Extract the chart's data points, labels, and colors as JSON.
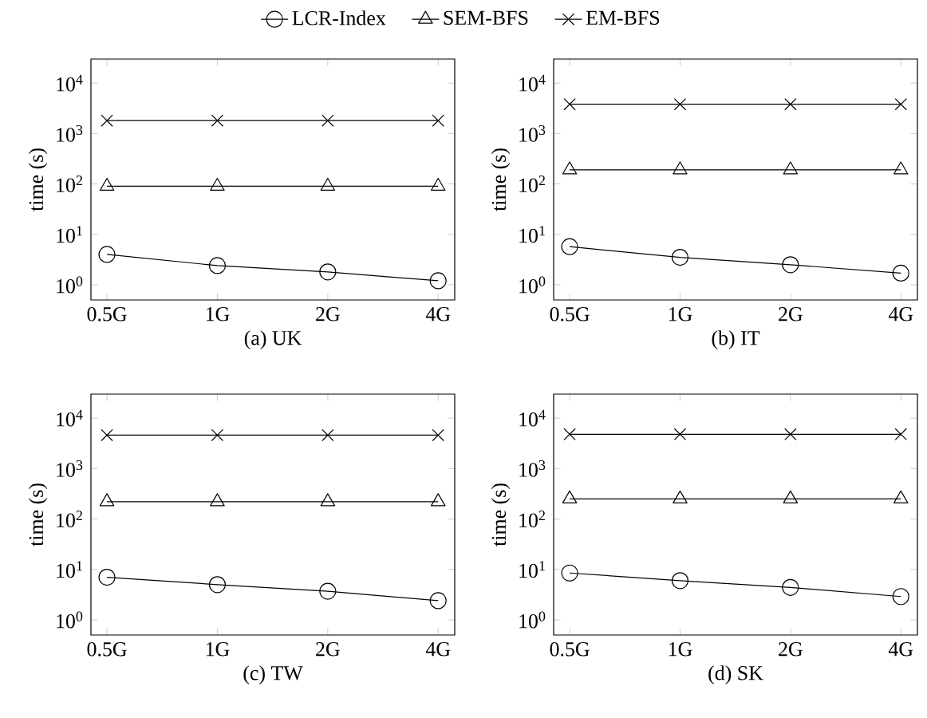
{
  "chart_data": [
    {
      "type": "line",
      "title": "(a)  UK",
      "ylabel": "time (s)",
      "categories": [
        "0.5G",
        "1G",
        "2G",
        "4G"
      ],
      "log": "y",
      "ylim": [
        0.5,
        30000
      ],
      "yticks": [
        {
          "value": 1,
          "label": "10$^{0}$"
        },
        {
          "value": 10,
          "label": "10$^{1}$"
        },
        {
          "value": 100,
          "label": "10$^{2}$"
        },
        {
          "value": 1000,
          "label": "10$^{3}$"
        },
        {
          "value": 10000,
          "label": "10$^{4}$"
        }
      ],
      "legend": "top",
      "line_style": "solid",
      "series": [
        {
          "name": "LCR-Index",
          "color": "#000000",
          "marker": "circle",
          "values": [
            4,
            2.4,
            1.8,
            1.2
          ]
        },
        {
          "name": "SEM-BFS",
          "color": "#000000",
          "marker": "triangle",
          "values": [
            90,
            90,
            90,
            90
          ]
        },
        {
          "name": "EM-BFS",
          "color": "#000000",
          "marker": "cross",
          "values": [
            1800,
            1800,
            1800,
            1800
          ]
        }
      ]
    },
    {
      "type": "line",
      "title": "(b)  IT",
      "ylabel": "time (s)",
      "categories": [
        "0.5G",
        "1G",
        "2G",
        "4G"
      ],
      "log": "y",
      "ylim": [
        0.5,
        30000
      ],
      "yticks": [
        {
          "value": 1,
          "label": "10$^{0}$"
        },
        {
          "value": 10,
          "label": "10$^{1}$"
        },
        {
          "value": 100,
          "label": "10$^{2}$"
        },
        {
          "value": 1000,
          "label": "10$^{3}$"
        },
        {
          "value": 10000,
          "label": "10$^{4}$"
        }
      ],
      "line_style": "solid",
      "series": [
        {
          "color": "#000000",
          "marker": "circle",
          "values": [
            5.7,
            3.5,
            2.5,
            1.7
          ]
        },
        {
          "color": "#000000",
          "marker": "triangle",
          "values": [
            190,
            190,
            190,
            190
          ]
        },
        {
          "color": "#000000",
          "marker": "cross",
          "values": [
            3800,
            3800,
            3800,
            3800
          ]
        }
      ]
    },
    {
      "type": "line",
      "title": "(c)  TW",
      "ylabel": "time (s)",
      "categories": [
        "0.5G",
        "1G",
        "2G",
        "4G"
      ],
      "log": "y",
      "ylim": [
        0.5,
        30000
      ],
      "yticks": [
        {
          "value": 1,
          "label": "10$^{0}$"
        },
        {
          "value": 10,
          "label": "10$^{1}$"
        },
        {
          "value": 100,
          "label": "10$^{2}$"
        },
        {
          "value": 1000,
          "label": "10$^{3}$"
        },
        {
          "value": 10000,
          "label": "10$^{4}$"
        }
      ],
      "line_style": "solid",
      "series": [
        {
          "color": "#000000",
          "marker": "circle",
          "values": [
            7,
            5,
            3.7,
            2.4
          ]
        },
        {
          "color": "#000000",
          "marker": "triangle",
          "values": [
            220,
            220,
            220,
            220
          ]
        },
        {
          "color": "#000000",
          "marker": "cross",
          "values": [
            4600,
            4600,
            4600,
            4600
          ]
        }
      ]
    },
    {
      "type": "line",
      "title": "(d)  SK",
      "ylabel": "time (s)",
      "categories": [
        "0.5G",
        "1G",
        "2G",
        "4G"
      ],
      "log": "y",
      "ylim": [
        0.5,
        30000
      ],
      "yticks": [
        {
          "value": 1,
          "label": "10$^{0}$"
        },
        {
          "value": 10,
          "label": "10$^{1}$"
        },
        {
          "value": 100,
          "label": "10$^{2}$"
        },
        {
          "value": 1000,
          "label": "10$^{3}$"
        },
        {
          "value": 10000,
          "label": "10$^{4}$"
        }
      ],
      "line_style": "solid",
      "series": [
        {
          "color": "#000000",
          "marker": "circle",
          "values": [
            8.5,
            6,
            4.4,
            2.9
          ]
        },
        {
          "color": "#000000",
          "marker": "triangle",
          "values": [
            250,
            250,
            250,
            250
          ]
        },
        {
          "color": "#000000",
          "marker": "cross",
          "values": [
            4800,
            4800,
            4800,
            4800
          ]
        }
      ]
    }
  ]
}
